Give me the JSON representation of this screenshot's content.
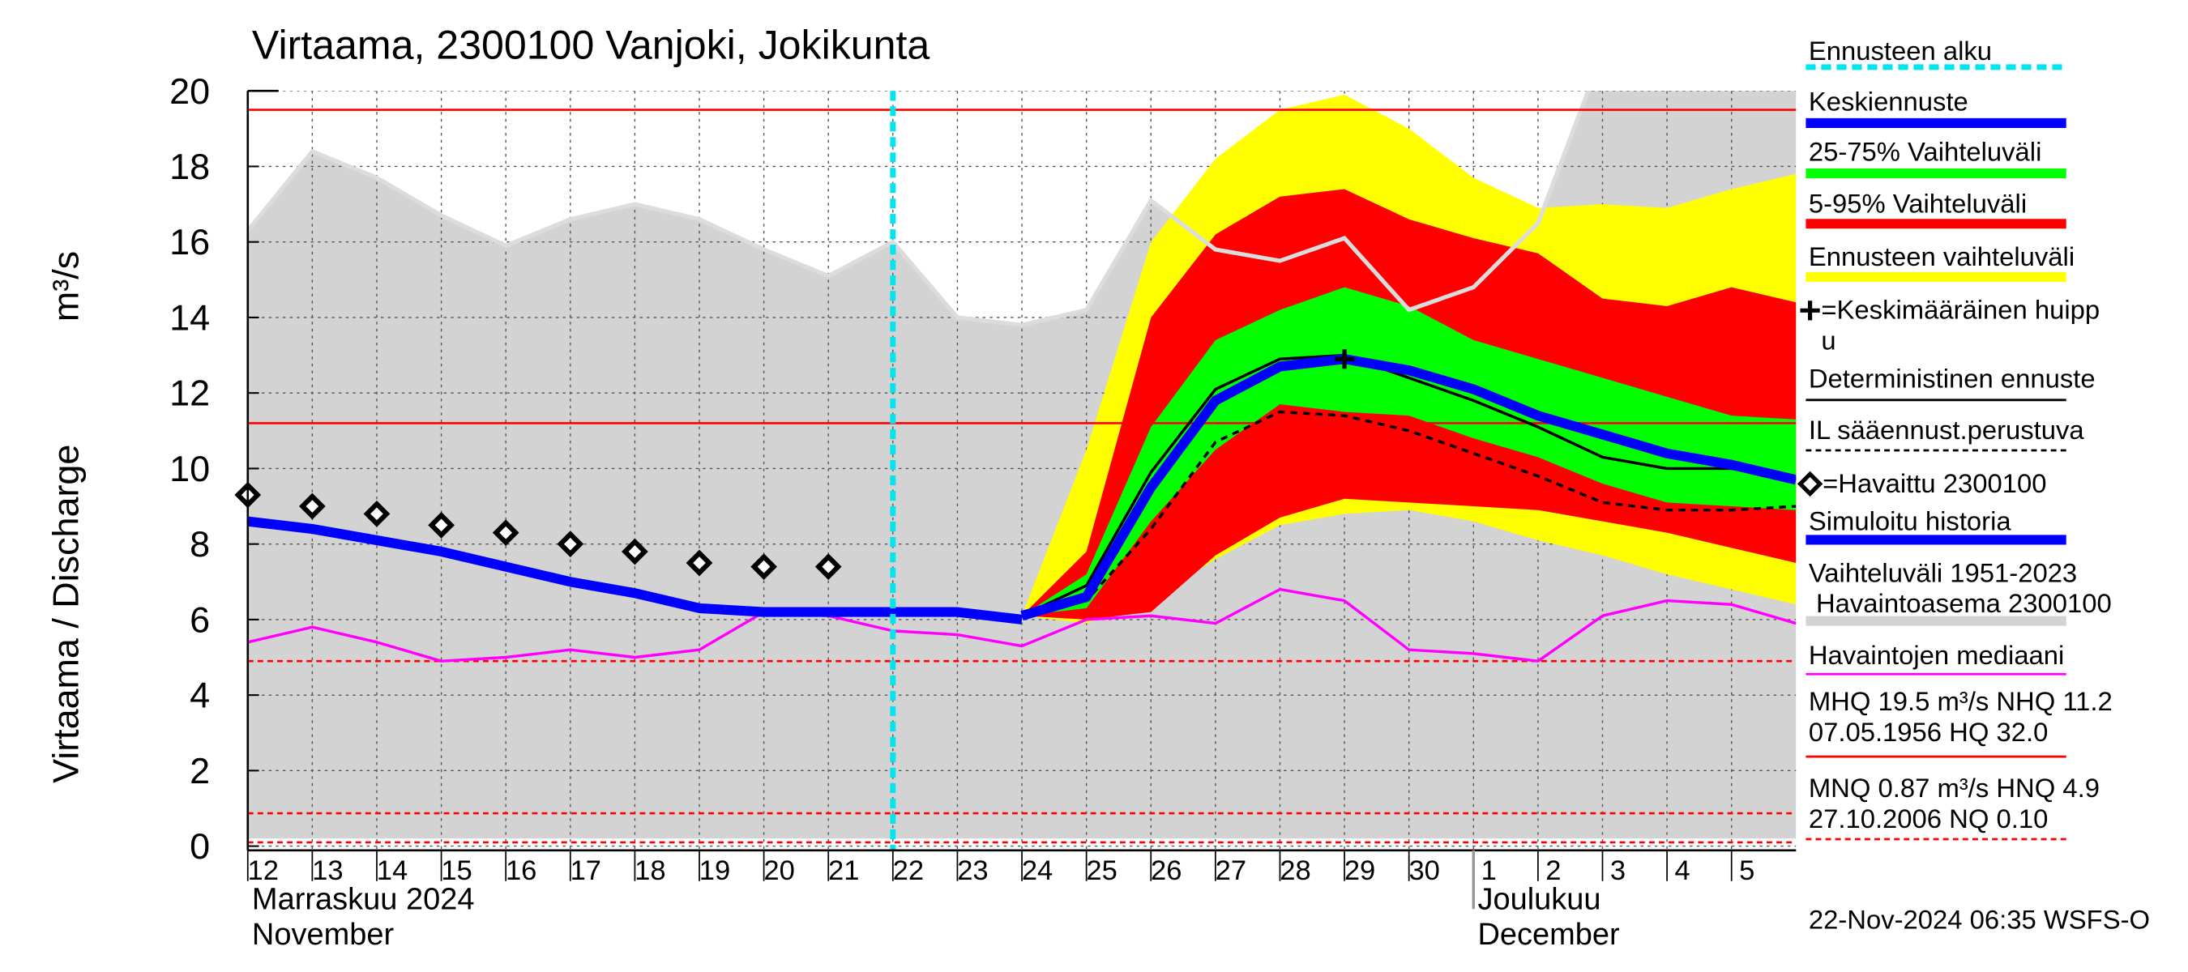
{
  "chart_data": {
    "type": "line",
    "title": "Virtaama, 2300100 Vanjoki, Jokikunta",
    "y_label": "Virtaama / Discharge",
    "y_unit": "m³/s",
    "month_labels": [
      {
        "x": "2024-11-12",
        "lines": [
          "Marraskuu 2024",
          "November"
        ]
      },
      {
        "x": "2024-12-01",
        "lines": [
          "Joulukuu",
          "December"
        ]
      }
    ],
    "footer": "22-Nov-2024 06:35 WSFS-O",
    "x": [
      "2024-11-12",
      "2024-11-13",
      "2024-11-14",
      "2024-11-15",
      "2024-11-16",
      "2024-11-17",
      "2024-11-18",
      "2024-11-19",
      "2024-11-20",
      "2024-11-21",
      "2024-11-22",
      "2024-11-23",
      "2024-11-24",
      "2024-11-25",
      "2024-11-26",
      "2024-11-27",
      "2024-11-28",
      "2024-11-29",
      "2024-11-30",
      "2024-12-01",
      "2024-12-02",
      "2024-12-03",
      "2024-12-04",
      "2024-12-05",
      "2024-12-06"
    ],
    "xlim": [
      "2024-11-12",
      "2024-12-06"
    ],
    "xticks": [
      {
        "value": "2024-11-12",
        "label": "12"
      },
      {
        "value": "2024-11-13",
        "label": "13"
      },
      {
        "value": "2024-11-14",
        "label": "14"
      },
      {
        "value": "2024-11-15",
        "label": "15"
      },
      {
        "value": "2024-11-16",
        "label": "16"
      },
      {
        "value": "2024-11-17",
        "label": "17"
      },
      {
        "value": "2024-11-18",
        "label": "18"
      },
      {
        "value": "2024-11-19",
        "label": "19"
      },
      {
        "value": "2024-11-20",
        "label": "20"
      },
      {
        "value": "2024-11-21",
        "label": "21"
      },
      {
        "value": "2024-11-22",
        "label": "22"
      },
      {
        "value": "2024-11-23",
        "label": "23"
      },
      {
        "value": "2024-11-24",
        "label": "24"
      },
      {
        "value": "2024-11-25",
        "label": "25"
      },
      {
        "value": "2024-11-26",
        "label": "26"
      },
      {
        "value": "2024-11-27",
        "label": "27"
      },
      {
        "value": "2024-11-28",
        "label": "28"
      },
      {
        "value": "2024-11-29",
        "label": "29"
      },
      {
        "value": "2024-11-30",
        "label": "30"
      },
      {
        "value": "2024-12-01",
        "label": "1"
      },
      {
        "value": "2024-12-02",
        "label": "2"
      },
      {
        "value": "2024-12-03",
        "label": "3"
      },
      {
        "value": "2024-12-04",
        "label": "4"
      },
      {
        "value": "2024-12-05",
        "label": "5"
      }
    ],
    "ylim": [
      0,
      20
    ],
    "yticks": [
      0,
      2,
      4,
      6,
      8,
      10,
      12,
      14,
      16,
      18,
      20
    ],
    "grid": true,
    "forecast_start": {
      "name": "Ennusteen alku",
      "color": "#00e5ee",
      "x": "2024-11-22"
    },
    "series": [
      {
        "name": "Keskiennuste",
        "style": "thick-line",
        "color": "#0000ff",
        "values": [
          null,
          null,
          null,
          null,
          null,
          null,
          null,
          null,
          null,
          null,
          null,
          null,
          6.1,
          6.6,
          9.5,
          11.8,
          12.7,
          12.9,
          12.6,
          12.1,
          11.4,
          10.9,
          10.4,
          10.1,
          9.7
        ]
      },
      {
        "name": "25-75% Vaihteluväli",
        "style": "band",
        "color": "#00ff00",
        "upper": [
          null,
          null,
          null,
          null,
          null,
          null,
          null,
          null,
          null,
          null,
          null,
          null,
          6.1,
          7.2,
          11.1,
          13.4,
          14.2,
          14.8,
          14.3,
          13.4,
          12.9,
          12.4,
          11.9,
          11.4,
          11.3
        ],
        "lower": [
          null,
          null,
          null,
          null,
          null,
          null,
          null,
          null,
          null,
          null,
          null,
          null,
          6.1,
          6.3,
          8.6,
          10.5,
          11.7,
          11.5,
          11.4,
          10.8,
          10.3,
          9.6,
          9.1,
          9.0,
          8.9
        ]
      },
      {
        "name": "5-95% Vaihteluväli",
        "style": "band",
        "color": "#ff0000",
        "upper": [
          null,
          null,
          null,
          null,
          null,
          null,
          null,
          null,
          null,
          null,
          null,
          null,
          6.1,
          7.8,
          14.0,
          16.2,
          17.2,
          17.4,
          16.6,
          16.1,
          15.7,
          14.5,
          14.3,
          14.8,
          14.4
        ],
        "lower": [
          null,
          null,
          null,
          null,
          null,
          null,
          null,
          null,
          null,
          null,
          null,
          null,
          6.1,
          6.0,
          6.2,
          7.7,
          8.7,
          9.2,
          9.1,
          9.0,
          8.9,
          8.6,
          8.3,
          7.9,
          7.5
        ]
      },
      {
        "name": "Ennusteen vaihteluväli",
        "style": "band",
        "color": "#ffff00",
        "upper": [
          null,
          null,
          null,
          null,
          null,
          null,
          null,
          null,
          null,
          null,
          null,
          null,
          6.1,
          10.5,
          16.0,
          18.2,
          19.5,
          19.9,
          19.0,
          17.7,
          16.9,
          17.0,
          16.9,
          17.4,
          17.8
        ],
        "lower": [
          null,
          null,
          null,
          null,
          null,
          null,
          null,
          null,
          null,
          null,
          null,
          null,
          6.1,
          5.9,
          6.5,
          7.6,
          8.5,
          8.8,
          8.9,
          8.6,
          8.1,
          7.7,
          7.2,
          6.8,
          6.4
        ]
      },
      {
        "name": "=Keskimääräinen huipp\nu",
        "style": "marker",
        "color": "#000000",
        "values": [
          null,
          null,
          null,
          null,
          null,
          null,
          null,
          null,
          null,
          null,
          null,
          null,
          null,
          null,
          null,
          null,
          null,
          12.9,
          null,
          null,
          null,
          null,
          null,
          null,
          null
        ]
      },
      {
        "name": "Deterministinen ennuste",
        "style": "line",
        "color": "#000000",
        "values": [
          null,
          null,
          null,
          null,
          null,
          null,
          null,
          null,
          null,
          null,
          null,
          null,
          6.1,
          6.9,
          9.9,
          12.1,
          12.9,
          13.0,
          12.4,
          11.8,
          11.1,
          10.3,
          10.0,
          10.0,
          9.7
        ]
      },
      {
        "name": "IL sääennust.perustuva",
        "style": "dashed-line",
        "color": "#000000",
        "values": [
          null,
          null,
          null,
          null,
          null,
          null,
          null,
          null,
          null,
          null,
          null,
          null,
          6.1,
          6.5,
          8.4,
          10.7,
          11.5,
          11.4,
          11.0,
          10.4,
          9.8,
          9.1,
          8.9,
          8.9,
          9.0
        ]
      },
      {
        "name": "=Havaittu 2300100",
        "style": "points",
        "color": "#000000",
        "values": [
          9.3,
          9.0,
          8.8,
          8.5,
          8.3,
          8.0,
          7.8,
          7.5,
          7.4,
          7.4,
          null,
          null,
          null,
          null,
          null,
          null,
          null,
          null,
          null,
          null,
          null,
          null,
          null,
          null,
          null
        ]
      },
      {
        "name": "Simuloitu historia",
        "style": "thick-line",
        "color": "#0000ff",
        "values": [
          8.6,
          8.4,
          8.1,
          7.8,
          7.4,
          7.0,
          6.7,
          6.3,
          6.2,
          6.2,
          6.2,
          6.2,
          6.0,
          null,
          null,
          null,
          null,
          null,
          null,
          null,
          null,
          null,
          null,
          null,
          null
        ]
      },
      {
        "name": "Vaihteluväli 1951-2023\n Havaintoasema 2300100",
        "style": "band",
        "color": "#d3d3d3",
        "upper": [
          16.3,
          18.4,
          17.7,
          16.7,
          15.9,
          16.6,
          17.0,
          16.6,
          15.8,
          15.1,
          16.0,
          14.0,
          13.8,
          14.2,
          17.1,
          15.8,
          15.5,
          16.1,
          14.2,
          14.8,
          16.5,
          21,
          21,
          21,
          21
        ],
        "lower": [
          0.2,
          0.2,
          0.2,
          0.2,
          0.2,
          0.2,
          0.2,
          0.2,
          0.2,
          0.2,
          0.2,
          0.2,
          0.2,
          0.2,
          0.2,
          0.2,
          0.2,
          0.2,
          0.2,
          0.2,
          0.2,
          0.2,
          0.2,
          0.2,
          0.2
        ]
      },
      {
        "name": "Havaintojen mediaani",
        "style": "line",
        "color": "#ff00ff",
        "values": [
          5.4,
          5.8,
          5.4,
          4.9,
          5.0,
          5.2,
          5.0,
          5.2,
          6.2,
          6.1,
          5.7,
          5.6,
          5.3,
          6.0,
          6.1,
          5.9,
          6.8,
          6.5,
          5.2,
          5.1,
          4.9,
          6.1,
          6.5,
          6.4,
          5.9
        ]
      }
    ],
    "reference_lines": [
      {
        "value": 19.5,
        "style": "solid",
        "color": "#ff0000"
      },
      {
        "value": 11.2,
        "style": "solid",
        "color": "#ff0000"
      },
      {
        "value": 4.9,
        "style": "dashed",
        "color": "#ff0000"
      },
      {
        "value": 0.87,
        "style": "dashed",
        "color": "#ff0000"
      },
      {
        "value": 0.1,
        "style": "dashed",
        "color": "#ff0000"
      }
    ],
    "notes": [
      {
        "lines": [
          "MHQ 19.5 m³/s NHQ 11.2",
          "07.05.1956 HQ 32.0"
        ],
        "style": "solid",
        "color": "#ff0000"
      },
      {
        "lines": [
          "MNQ 0.87 m³/s HNQ  4.9",
          "27.10.2006 NQ 0.10"
        ],
        "style": "dashed",
        "color": "#ff0000"
      }
    ]
  }
}
